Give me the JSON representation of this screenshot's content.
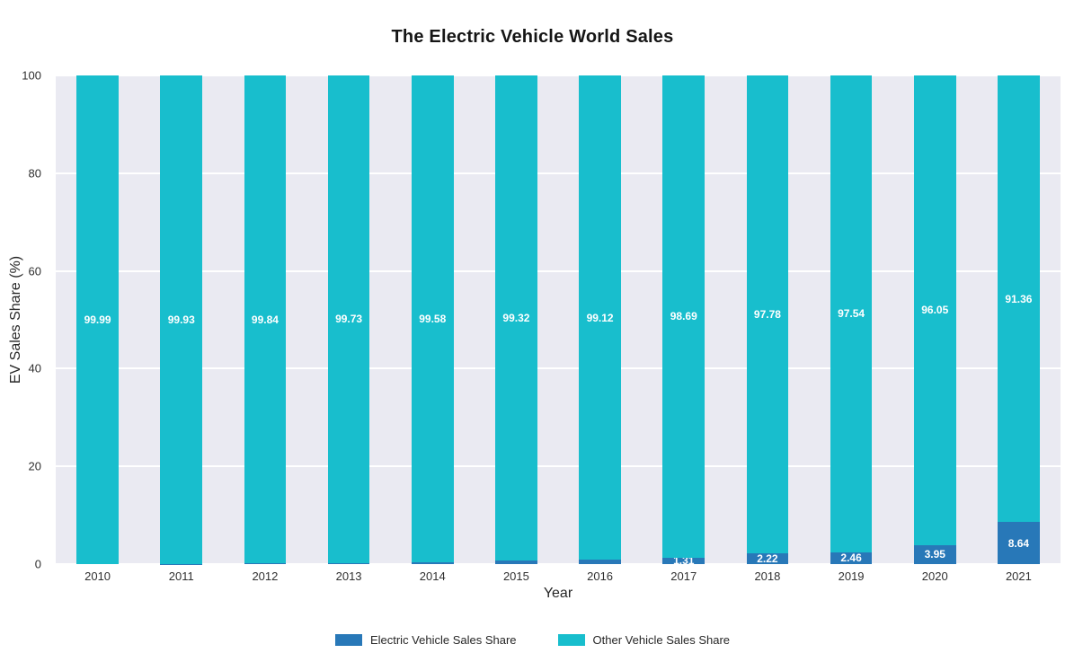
{
  "chart_data": {
    "type": "bar",
    "stacked": true,
    "title": "The Electric Vehicle World Sales",
    "xlabel": "Year",
    "ylabel": "EV Sales Share (%)",
    "ylim": [
      0,
      100
    ],
    "yticks": [
      0,
      20,
      40,
      60,
      80,
      100
    ],
    "grid": true,
    "legend_position": "bottom",
    "plot_background": "#eaeaf2",
    "gridline_color": "#ffffff",
    "categories": [
      "2010",
      "2011",
      "2012",
      "2013",
      "2014",
      "2015",
      "2016",
      "2017",
      "2018",
      "2019",
      "2020",
      "2021"
    ],
    "series": [
      {
        "name": "Electric Vehicle Sales Share",
        "color": "#2878b8",
        "values": [
          0.01,
          0.07,
          0.16,
          0.27,
          0.42,
          0.68,
          0.88,
          1.31,
          2.22,
          2.46,
          3.95,
          8.64
        ],
        "labels": [
          null,
          null,
          null,
          null,
          null,
          null,
          null,
          "1.31",
          "2.22",
          "2.46",
          "3.95",
          "8.64"
        ]
      },
      {
        "name": "Other Vehicle Sales Share",
        "color": "#18becd",
        "values": [
          99.99,
          99.93,
          99.84,
          99.73,
          99.58,
          99.32,
          99.12,
          98.69,
          97.78,
          97.54,
          96.05,
          91.36
        ],
        "labels": [
          "99.99",
          "99.93",
          "99.84",
          "99.73",
          "99.58",
          "99.32",
          "99.12",
          "98.69",
          "97.78",
          "97.54",
          "96.05",
          "91.36"
        ]
      }
    ]
  }
}
